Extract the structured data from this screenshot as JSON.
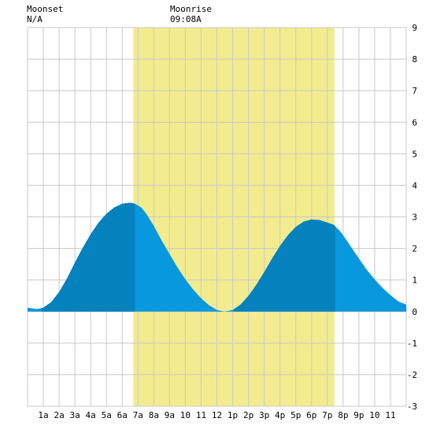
{
  "header": {
    "moonset_label": "Moonset",
    "moonset_time": "N/A",
    "moonrise_label": "Moonrise",
    "moonrise_time": "09:08A"
  },
  "colors": {
    "daylight_band": "#f2ec8f",
    "tide_dark": "#0581bd",
    "tide_light": "#0898de",
    "grid": "#c8c8c8",
    "background": "#ffffff"
  },
  "chart_data": {
    "type": "area",
    "x_unit": "hour of day",
    "xlim": [
      0,
      24
    ],
    "ylim": [
      -3,
      9
    ],
    "grid": true,
    "x_ticks": [
      {
        "x": 1,
        "label": "1a"
      },
      {
        "x": 2,
        "label": "2a"
      },
      {
        "x": 3,
        "label": "3a"
      },
      {
        "x": 4,
        "label": "4a"
      },
      {
        "x": 5,
        "label": "5a"
      },
      {
        "x": 6,
        "label": "6a"
      },
      {
        "x": 7,
        "label": "7a"
      },
      {
        "x": 8,
        "label": "8a"
      },
      {
        "x": 9,
        "label": "9a"
      },
      {
        "x": 10,
        "label": "10"
      },
      {
        "x": 11,
        "label": "11"
      },
      {
        "x": 12,
        "label": "12"
      },
      {
        "x": 13,
        "label": "1p"
      },
      {
        "x": 14,
        "label": "2p"
      },
      {
        "x": 15,
        "label": "3p"
      },
      {
        "x": 16,
        "label": "4p"
      },
      {
        "x": 17,
        "label": "5p"
      },
      {
        "x": 18,
        "label": "6p"
      },
      {
        "x": 19,
        "label": "7p"
      },
      {
        "x": 20,
        "label": "8p"
      },
      {
        "x": 21,
        "label": "9p"
      },
      {
        "x": 22,
        "label": "10"
      },
      {
        "x": 23,
        "label": "11"
      }
    ],
    "y_ticks": [
      -3,
      -2,
      -1,
      0,
      1,
      2,
      3,
      4,
      5,
      6,
      7,
      8,
      9
    ],
    "daylight": {
      "start": 6.7,
      "end": 19.45
    },
    "dark_segments": [
      {
        "start": 0.9,
        "end": 6.8
      },
      {
        "start": 13.1,
        "end": 19.5
      }
    ],
    "tide_series": {
      "x": [
        0,
        0.6,
        1.0,
        1.5,
        2.0,
        2.5,
        3.0,
        3.5,
        4.0,
        4.5,
        5.0,
        5.5,
        6.0,
        6.5,
        6.8,
        7.2,
        7.5,
        8.0,
        8.5,
        9.0,
        9.5,
        10.0,
        10.5,
        11.0,
        11.5,
        12.0,
        12.5,
        13.0,
        13.5,
        14.0,
        14.5,
        15.0,
        15.5,
        16.0,
        16.5,
        17.0,
        17.5,
        18.0,
        18.5,
        19.0,
        19.4,
        19.8,
        20.0,
        20.5,
        21.0,
        21.5,
        22.0,
        22.5,
        23.0,
        23.5,
        24.0
      ],
      "y": [
        0.12,
        0.08,
        0.12,
        0.3,
        0.62,
        1.05,
        1.55,
        2.02,
        2.45,
        2.82,
        3.1,
        3.3,
        3.42,
        3.45,
        3.42,
        3.3,
        3.12,
        2.72,
        2.25,
        1.82,
        1.4,
        1.02,
        0.7,
        0.42,
        0.2,
        0.05,
        0.0,
        0.05,
        0.22,
        0.5,
        0.85,
        1.25,
        1.68,
        2.08,
        2.42,
        2.68,
        2.85,
        2.92,
        2.9,
        2.82,
        2.75,
        2.55,
        2.42,
        2.05,
        1.68,
        1.32,
        1.02,
        0.75,
        0.52,
        0.32,
        0.22
      ]
    }
  }
}
